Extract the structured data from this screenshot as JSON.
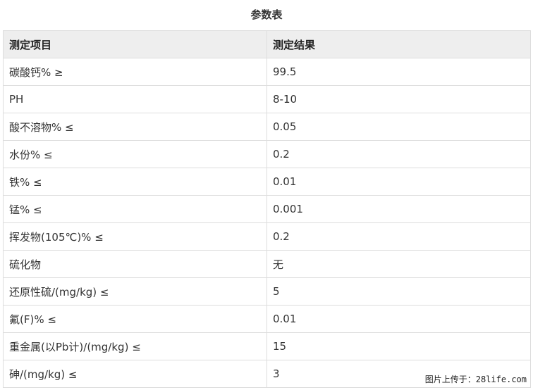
{
  "title": "参数表",
  "table": {
    "headers": [
      "测定项目",
      "测定结果"
    ],
    "rows": [
      [
        "碳酸钙% ≥",
        "99.5"
      ],
      [
        "PH",
        "8-10"
      ],
      [
        "酸不溶物% ≤",
        "0.05"
      ],
      [
        "水份% ≤",
        "0.2"
      ],
      [
        "铁% ≤",
        "0.01"
      ],
      [
        "锰% ≤",
        "0.001"
      ],
      [
        "挥发物(105℃)% ≤",
        "0.2"
      ],
      [
        "硫化物",
        "无"
      ],
      [
        "还原性硫/(mg/kg) ≤",
        "5"
      ],
      [
        "氟(F)% ≤",
        "0.01"
      ],
      [
        "重金属(以Pb计)/(mg/kg) ≤",
        "15"
      ],
      [
        "砷/(mg/kg) ≤",
        "3"
      ]
    ]
  },
  "watermark": "图片上传于：28life.com"
}
